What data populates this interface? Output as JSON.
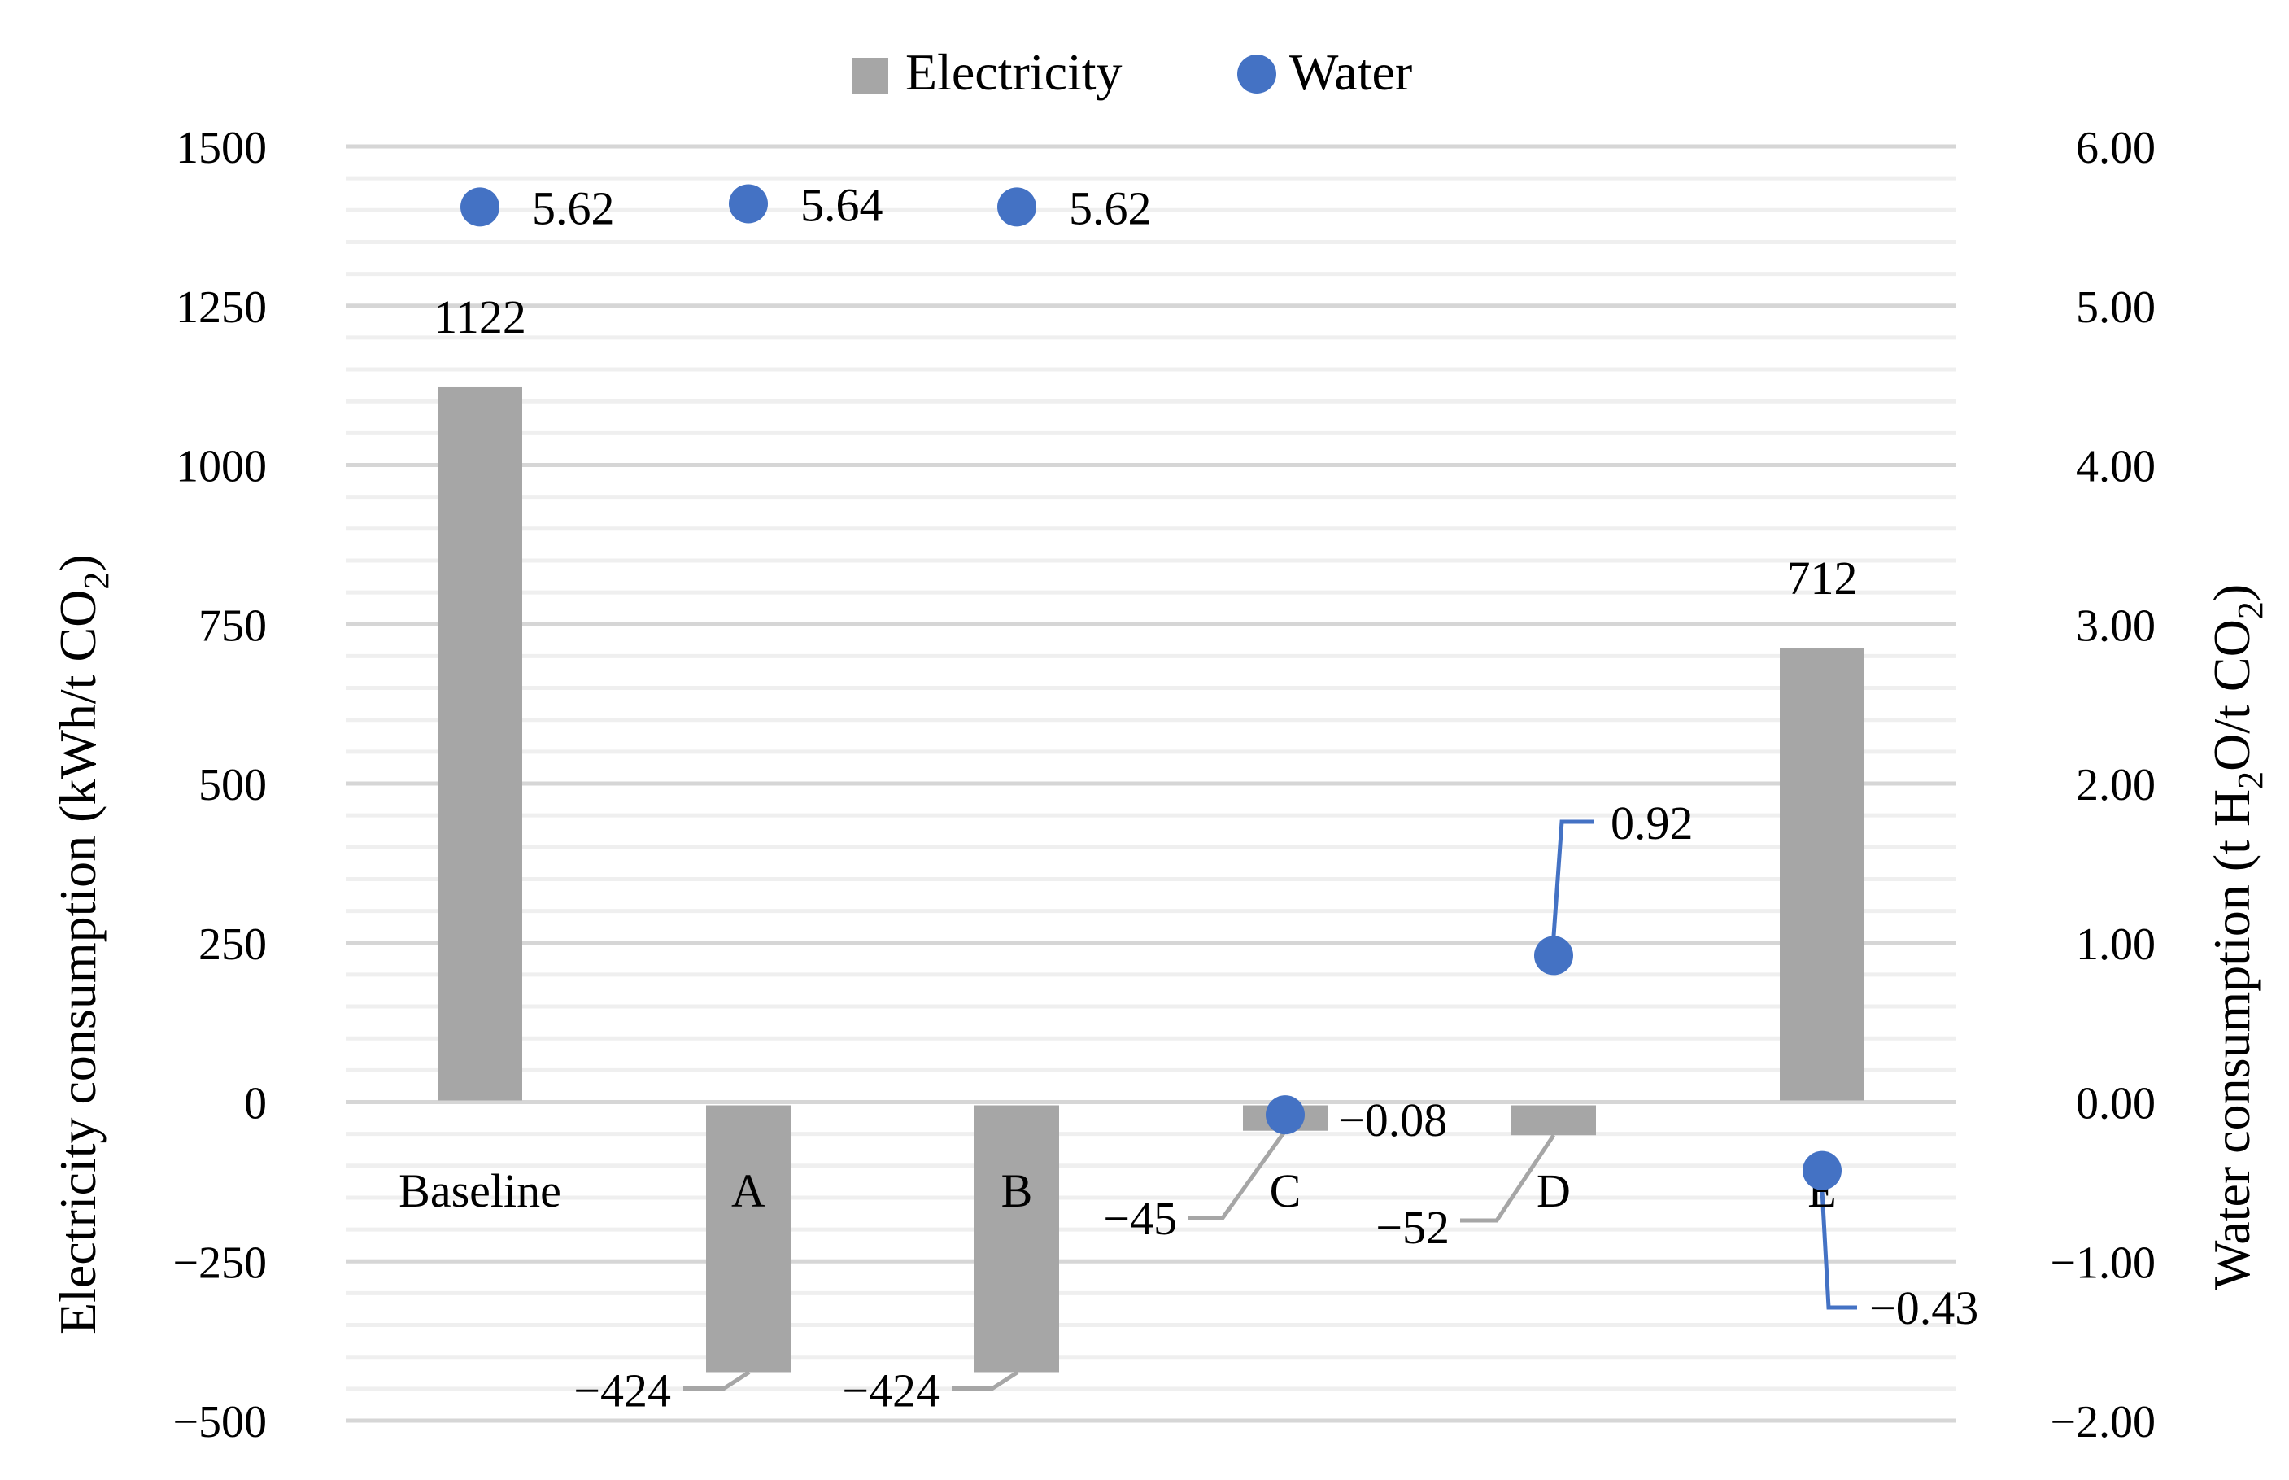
{
  "chart_data": {
    "type": "bar",
    "categories": [
      "Baseline",
      "A",
      "B",
      "C",
      "D",
      "E"
    ],
    "series": [
      {
        "name": "Electricity",
        "kind": "bar",
        "axis": "left",
        "color": "#a6a6a6",
        "values": [
          1122,
          -424,
          -424,
          -45,
          -52,
          712
        ],
        "labels": [
          "1122",
          "−424",
          "−424",
          "−45",
          "−52",
          "712"
        ]
      },
      {
        "name": "Water",
        "kind": "scatter",
        "axis": "right",
        "color": "#4472c4",
        "values": [
          5.62,
          5.64,
          5.62,
          -0.08,
          0.92,
          -0.43
        ],
        "labels": [
          "5.62",
          "5.64",
          "5.62",
          "−0.08",
          "0.92",
          "−0.43"
        ]
      }
    ],
    "y_left": {
      "label_main": "Electricity consumption (kWh/t CO",
      "label_sub": "2",
      "label_end": ")",
      "range": [
        -500,
        1500
      ],
      "ticks": [
        1500,
        1250,
        1000,
        750,
        500,
        250,
        0,
        -250,
        -500
      ],
      "tick_labels": [
        "1500",
        "1250",
        "1000",
        "750",
        "500",
        "250",
        "0",
        "−250",
        "−500"
      ]
    },
    "y_right": {
      "label_parts": [
        "Water consumption (t H",
        "2",
        "O/t CO",
        "2",
        ")"
      ],
      "range": [
        -2,
        6
      ],
      "ticks": [
        6,
        5,
        4,
        3,
        2,
        1,
        0,
        -1,
        -2
      ],
      "tick_labels": [
        "6.00",
        "5.00",
        "4.00",
        "3.00",
        "2.00",
        "1.00",
        "0.00",
        "−1.00",
        "−2.00"
      ]
    },
    "legend": {
      "position": "top-center",
      "entries": [
        "Electricity",
        "Water"
      ]
    },
    "grid": true
  }
}
